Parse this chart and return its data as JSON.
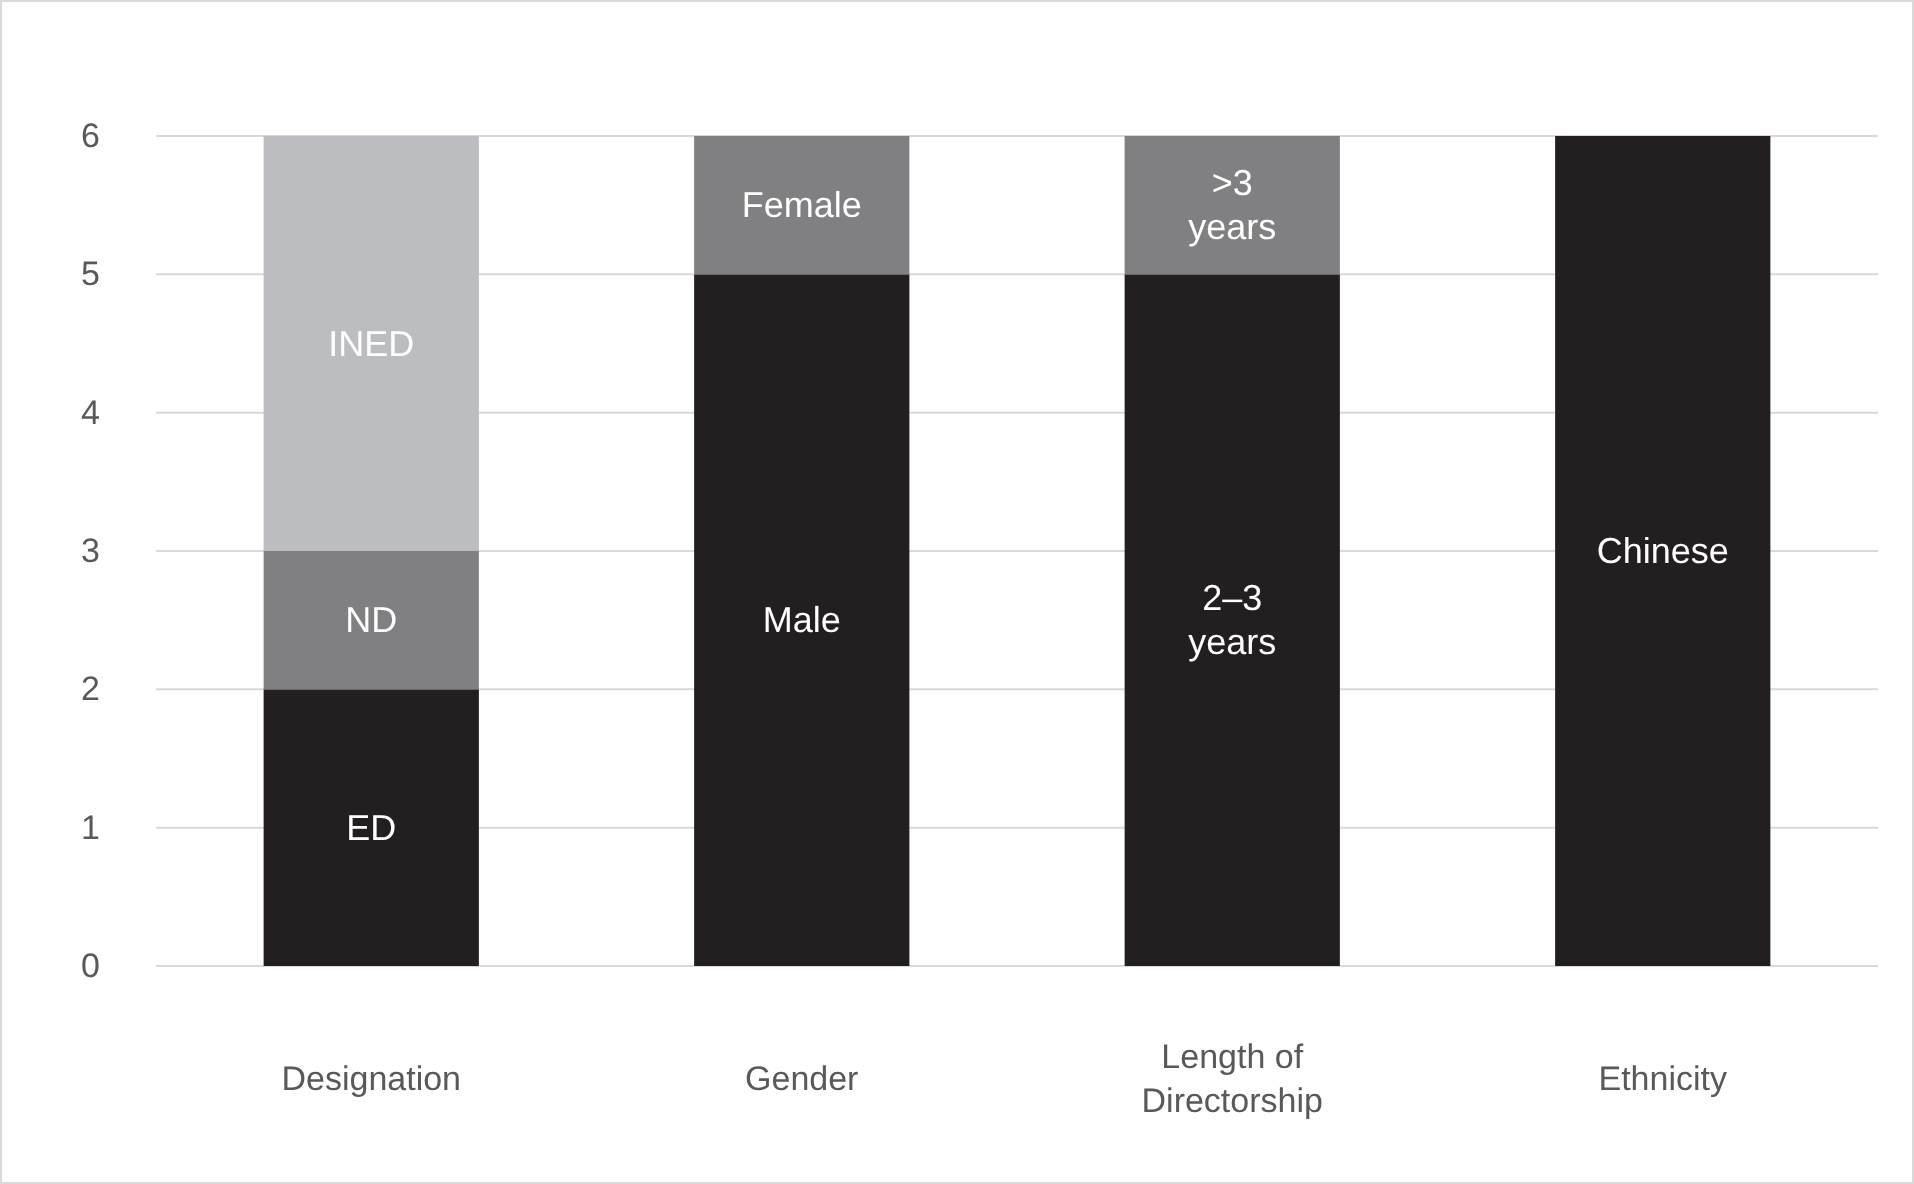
{
  "chart_data": {
    "type": "bar",
    "stacked": true,
    "categories": [
      "Designation",
      "Gender",
      "Length of Directorship",
      "Ethnicity"
    ],
    "series": [
      {
        "color": "#231f20",
        "values": [
          2,
          5,
          5,
          6
        ],
        "value_labels": [
          "ED",
          "Male",
          "2–3 years",
          "Chinese"
        ]
      },
      {
        "color": "#808083",
        "values": [
          1,
          1,
          1,
          null
        ],
        "value_labels": [
          "ND",
          "Female",
          ">3 years",
          null
        ]
      },
      {
        "color": "#bcbdc0",
        "values": [
          3,
          null,
          null,
          null
        ],
        "value_labels": [
          "INED",
          null,
          null,
          null
        ]
      }
    ],
    "ylim": [
      0,
      6
    ],
    "yticks": [
      0,
      1,
      2,
      3,
      4,
      5,
      6
    ],
    "grid": "y"
  }
}
